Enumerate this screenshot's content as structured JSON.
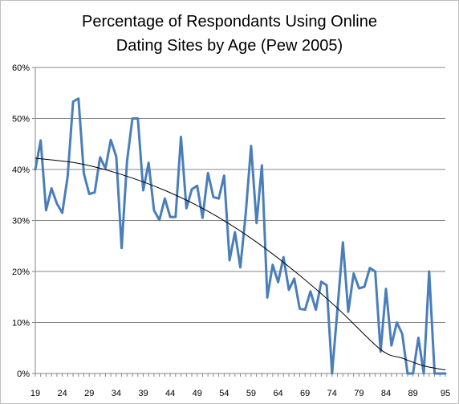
{
  "chart_data": {
    "type": "line",
    "title_line1": "Percentage of Respondants Using Online",
    "title_line2": "Dating Sites by Age (Pew 2005)",
    "xlabel": "",
    "ylabel": "",
    "x_tick_labels": [
      "19",
      "24",
      "29",
      "34",
      "39",
      "44",
      "49",
      "54",
      "59",
      "64",
      "69",
      "74",
      "79",
      "84",
      "89",
      "95"
    ],
    "y_tick_labels": [
      "0%",
      "10%",
      "20%",
      "30%",
      "40%",
      "50%",
      "60%"
    ],
    "ylim": [
      0,
      60
    ],
    "xlim": [
      19,
      95
    ],
    "grid": "horizontal",
    "legend": "none",
    "series": [
      {
        "line_color": "#4a7ebb",
        "x": [
          19,
          20,
          21,
          22,
          23,
          24,
          25,
          26,
          27,
          28,
          29,
          30,
          31,
          32,
          33,
          34,
          35,
          36,
          37,
          38,
          39,
          40,
          41,
          42,
          43,
          44,
          45,
          46,
          47,
          48,
          49,
          50,
          51,
          52,
          53,
          54,
          55,
          56,
          57,
          58,
          59,
          60,
          61,
          62,
          63,
          64,
          65,
          66,
          67,
          68,
          69,
          70,
          71,
          72,
          73,
          74,
          75,
          76,
          77,
          78,
          79,
          80,
          81,
          82,
          83,
          84,
          85,
          86,
          87,
          88,
          89,
          90,
          91,
          92,
          93,
          94,
          95
        ],
        "values": [
          40,
          45.7,
          32,
          36.3,
          33.3,
          31.5,
          38.6,
          53.3,
          53.9,
          39.2,
          35.2,
          35.5,
          42.4,
          40.2,
          45.8,
          42.5,
          24.6,
          41.6,
          50,
          50,
          35.9,
          41.3,
          32,
          30.1,
          34.3,
          30.7,
          30.7,
          46.4,
          32.4,
          36.1,
          36.8,
          30.5,
          39.3,
          34.6,
          34.3,
          38.8,
          22.2,
          27.7,
          20.8,
          31.3,
          44.6,
          29.5,
          40.8,
          14.9,
          21.3,
          17.9,
          22.8,
          16.4,
          18.6,
          12.7,
          12.5,
          16.1,
          12.5,
          18,
          17.3,
          0,
          12.5,
          25.7,
          12.1,
          19.6,
          16.7,
          17,
          20.7,
          20,
          4.3,
          16.6,
          5.5,
          10,
          7.8,
          0,
          0,
          7,
          0,
          20,
          0,
          0,
          0
        ]
      }
    ],
    "trendline": {
      "type": "polynomial",
      "line_color": "#000000",
      "x": [
        19,
        27,
        35,
        43,
        51,
        59,
        67,
        75,
        83,
        87,
        91,
        95
      ],
      "values": [
        42.2,
        41.2,
        39.0,
        35.9,
        31.8,
        26.5,
        20.1,
        12.8,
        4.7,
        3.0,
        1.5,
        0.7
      ]
    }
  }
}
